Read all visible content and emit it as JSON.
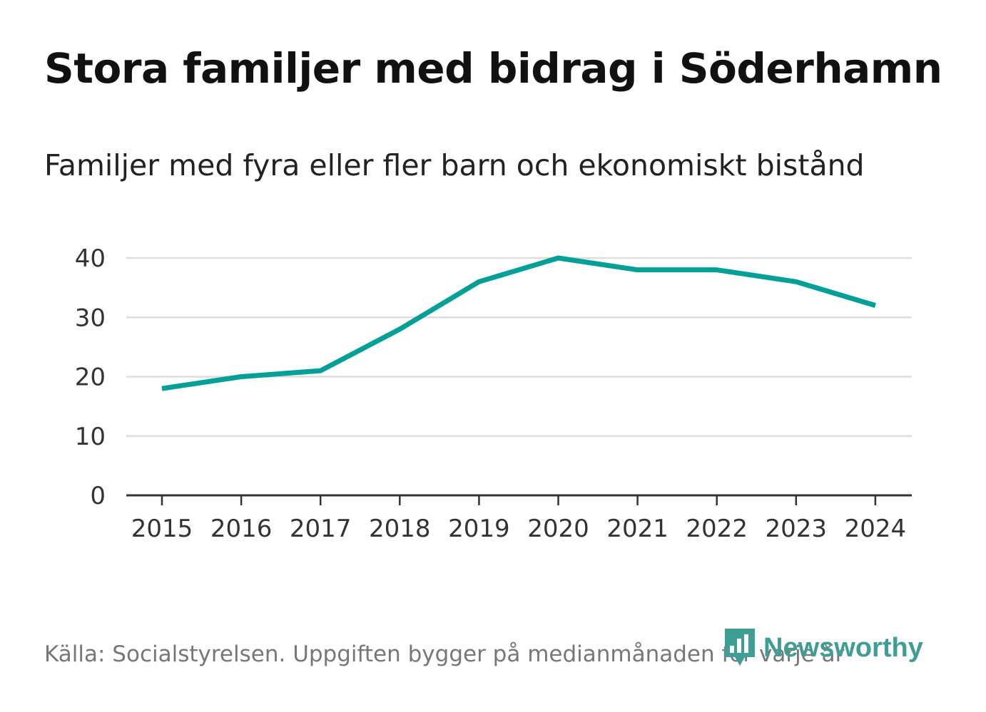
{
  "title": "Stora familjer med bidrag i Söderhamn",
  "subtitle": "Familjer med fyra eller fler barn och ekonomiskt bistånd",
  "source": "Källa: Socialstyrelsen. Uppgiften bygger på medianmånaden för varje år",
  "logo": {
    "text": "Newsworthy",
    "icon": "newsworthy-logo-icon",
    "color": "#3f9e94"
  },
  "colors": {
    "line": "#00a096",
    "grid": "#dddddd",
    "axis": "#333333"
  },
  "chart_data": {
    "type": "line",
    "title": "Stora familjer med bidrag i Söderhamn",
    "subtitle": "Familjer med fyra eller fler barn och ekonomiskt bistånd",
    "xlabel": "",
    "ylabel": "",
    "categories": [
      "2015",
      "2016",
      "2017",
      "2018",
      "2019",
      "2020",
      "2021",
      "2022",
      "2023",
      "2024"
    ],
    "series": [
      {
        "name": "Familjer med fyra eller fler barn och ekonomiskt bistånd",
        "values": [
          18,
          20,
          21,
          28,
          36,
          40,
          38,
          38,
          36,
          32
        ]
      }
    ],
    "ylim": [
      0,
      40
    ],
    "yticks": [
      "0",
      "10",
      "20",
      "30",
      "40"
    ],
    "grid": true,
    "legend": "none"
  }
}
